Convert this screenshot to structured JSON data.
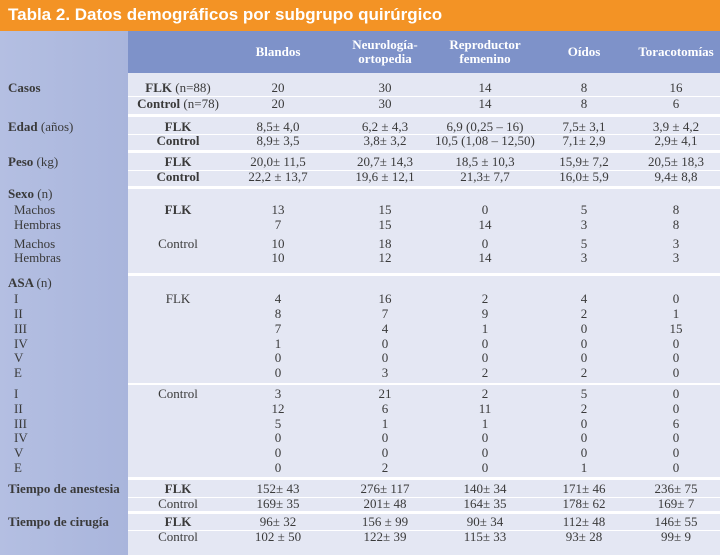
{
  "title": "Tabla 2. Datos demográficos por subgrupo quirúrgico",
  "colors": {
    "title_bar": "#f39325",
    "header": "#7e92c9",
    "left_column": "#a9b5dc",
    "body": "#e4e7f3"
  },
  "columns": [
    "Blandos",
    "Neurología- ortopedia",
    "Reproductor femenino",
    "Oídos",
    "Toracotomías"
  ],
  "sections": [
    {
      "label": "Casos",
      "unit": "",
      "rows": [
        {
          "sublabel": "",
          "group": "FLK",
          "note": "(n=88)",
          "values": [
            "20",
            "30",
            "14",
            "8",
            "16"
          ]
        },
        {
          "sublabel": "",
          "group": "Control",
          "note": "(n=78)",
          "values": [
            "20",
            "30",
            "14",
            "8",
            "6"
          ]
        }
      ]
    },
    {
      "label": "Edad",
      "unit": "(años)",
      "rows": [
        {
          "sublabel": "",
          "group": "FLK",
          "note": "",
          "values": [
            "8,5± 4,0",
            "6,2 ± 4,3",
            "6,9 (0,25 – 16)",
            "7,5± 3,1",
            "3,9 ± 4,2"
          ]
        },
        {
          "sublabel": "",
          "group": "Control",
          "note": "",
          "values": [
            "8,9± 3,5",
            "3,8± 3,2",
            "10,5 (1,08 – 12,50)",
            "7,1± 2,9",
            "2,9± 4,1"
          ]
        }
      ]
    },
    {
      "label": "Peso",
      "unit": "(kg)",
      "rows": [
        {
          "sublabel": "",
          "group": "FLK",
          "note": "",
          "values": [
            "20,0± 11,5",
            "20,7± 14,3",
            "18,5 ± 10,3",
            "15,9± 7,2",
            "20,5± 18,3"
          ]
        },
        {
          "sublabel": "",
          "group": "Control",
          "note": "",
          "values": [
            "22,2 ± 13,7",
            "19,6 ± 12,1",
            "21,3± 7,7",
            "16,0± 5,9",
            "9,4± 8,8"
          ]
        }
      ]
    },
    {
      "label": "Sexo",
      "unit": "(n)",
      "rows": [
        {
          "sublabel": "Machos",
          "group": "FLK",
          "note": "",
          "values": [
            "13",
            "15",
            "0",
            "5",
            "8"
          ]
        },
        {
          "sublabel": "Hembras",
          "group": "",
          "note": "",
          "values": [
            "7",
            "15",
            "14",
            "3",
            "8"
          ]
        },
        {
          "sublabel": "Machos",
          "group": "Control",
          "note": "",
          "values": [
            "10",
            "18",
            "0",
            "5",
            "3"
          ]
        },
        {
          "sublabel": "Hembras",
          "group": "",
          "note": "",
          "values": [
            "10",
            "12",
            "14",
            "3",
            "3"
          ]
        }
      ]
    },
    {
      "label": "ASA",
      "unit": "(n)",
      "rows": [
        {
          "sublabel": "I",
          "group": "FLK",
          "note": "",
          "values": [
            "4",
            "16",
            "2",
            "4",
            "0"
          ]
        },
        {
          "sublabel": "II",
          "group": "",
          "note": "",
          "values": [
            "8",
            "7",
            "9",
            "2",
            "1"
          ]
        },
        {
          "sublabel": "III",
          "group": "",
          "note": "",
          "values": [
            "7",
            "4",
            "1",
            "0",
            "15"
          ]
        },
        {
          "sublabel": "IV",
          "group": "",
          "note": "",
          "values": [
            "1",
            "0",
            "0",
            "0",
            "0"
          ]
        },
        {
          "sublabel": "V",
          "group": "",
          "note": "",
          "values": [
            "0",
            "0",
            "0",
            "0",
            "0"
          ]
        },
        {
          "sublabel": "E",
          "group": "",
          "note": "",
          "values": [
            "0",
            "3",
            "2",
            "2",
            "0"
          ]
        },
        {
          "sublabel": "I",
          "group": "Control",
          "note": "",
          "values": [
            "3",
            "21",
            "2",
            "5",
            "0"
          ]
        },
        {
          "sublabel": "II",
          "group": "",
          "note": "",
          "values": [
            "12",
            "6",
            "11",
            "2",
            "0"
          ]
        },
        {
          "sublabel": "III",
          "group": "",
          "note": "",
          "values": [
            "5",
            "1",
            "1",
            "0",
            "6"
          ]
        },
        {
          "sublabel": "IV",
          "group": "",
          "note": "",
          "values": [
            "0",
            "0",
            "0",
            "0",
            "0"
          ]
        },
        {
          "sublabel": "V",
          "group": "",
          "note": "",
          "values": [
            "0",
            "0",
            "0",
            "0",
            "0"
          ]
        },
        {
          "sublabel": "E",
          "group": "",
          "note": "",
          "values": [
            "0",
            "2",
            "0",
            "1",
            "0"
          ]
        }
      ]
    },
    {
      "label": "Tiempo de anestesia",
      "unit": "",
      "rows": [
        {
          "sublabel": "",
          "group": "FLK",
          "note": "",
          "values": [
            "152± 43",
            "276± 117",
            "140± 34",
            "171± 46",
            "236± 75"
          ]
        },
        {
          "sublabel": "",
          "group": "Control",
          "note": "",
          "values": [
            "169± 35",
            "201± 48",
            "164± 35",
            "178± 62",
            "169± 7"
          ]
        }
      ]
    },
    {
      "label": "Tiempo de cirugía",
      "unit": "",
      "rows": [
        {
          "sublabel": "",
          "group": "FLK",
          "note": "",
          "values": [
            "96± 32",
            "156 ± 99",
            "90± 34",
            "112± 48",
            "146± 55"
          ]
        },
        {
          "sublabel": "",
          "group": "Control",
          "note": "",
          "values": [
            "102 ± 50",
            "122± 39",
            "115± 33",
            "93± 28",
            "99± 9"
          ]
        }
      ]
    }
  ]
}
